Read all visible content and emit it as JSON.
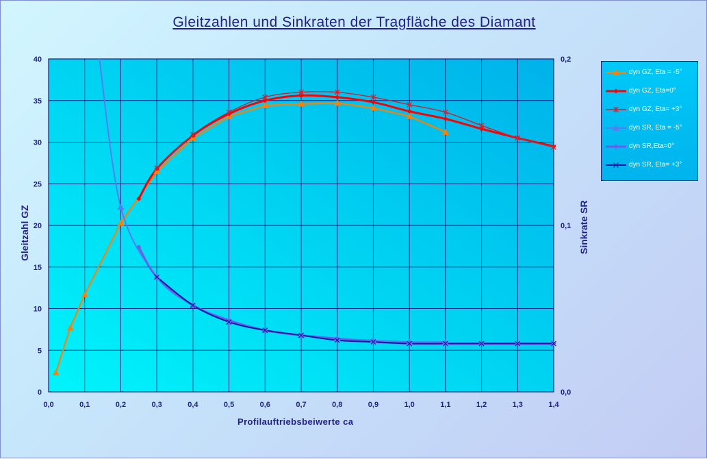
{
  "chart_data": {
    "type": "line",
    "title": "Gleitzahlen und Sinkraten der Tragfläche des Diamant",
    "xlabel": "Profilauftriebsbeiwerte ca",
    "ylabel": "Gleitzahl GZ",
    "y2label": "Sinkrate SR",
    "xlim": [
      0.0,
      1.4
    ],
    "ylim": [
      0,
      40
    ],
    "y2lim": [
      0.0,
      0.2
    ],
    "x_ticks": [
      "0,0",
      "0,1",
      "0,2",
      "0,3",
      "0,4",
      "0,5",
      "0,6",
      "0,7",
      "0,8",
      "0,9",
      "1,0",
      "1,1",
      "1,2",
      "1,3",
      "1,4"
    ],
    "y_ticks": [
      "0",
      "5",
      "10",
      "15",
      "20",
      "25",
      "30",
      "35",
      "40"
    ],
    "y2_ticks": [
      "0,0",
      "0,1",
      "0,2"
    ],
    "grid": true,
    "legend_position": "right",
    "series": [
      {
        "name": "dyn GZ, Eta = -5°",
        "axis": "left",
        "color": "#ff7f00",
        "marker": "triangle",
        "x": [
          0.02,
          0.06,
          0.1,
          0.2,
          0.3,
          0.4,
          0.5,
          0.6,
          0.7,
          0.8,
          0.9,
          1.0,
          1.1
        ],
        "y": [
          2.3,
          7.7,
          11.7,
          20.3,
          26.5,
          30.5,
          33.1,
          34.4,
          34.6,
          34.7,
          34.1,
          33.1,
          31.2
        ]
      },
      {
        "name": "dyn GZ, Eta=0°",
        "axis": "left",
        "color": "#ff0000",
        "marker": "diamond",
        "x": [
          0.25,
          0.3,
          0.4,
          0.5,
          0.6,
          0.7,
          0.8,
          0.9,
          1.0,
          1.1,
          1.2,
          1.3,
          1.4
        ],
        "y": [
          23.2,
          26.8,
          30.8,
          33.4,
          35.0,
          35.6,
          35.4,
          34.8,
          33.7,
          32.8,
          31.6,
          30.5,
          29.5
        ]
      },
      {
        "name": "dyn GZ, Eta= +3°",
        "axis": "left",
        "color": "#cc2233",
        "marker": "star",
        "x": [
          0.3,
          0.4,
          0.5,
          0.6,
          0.7,
          0.8,
          0.9,
          1.0,
          1.1,
          1.2,
          1.3,
          1.4
        ],
        "y": [
          26.9,
          30.9,
          33.6,
          35.4,
          36.0,
          36.0,
          35.4,
          34.5,
          33.6,
          32.0,
          30.5,
          29.4
        ]
      },
      {
        "name": "dyn SR, Eta = -5°",
        "axis": "right",
        "color": "#5a7cf0",
        "marker": "triangle",
        "x": [
          0.14,
          0.2,
          0.3,
          0.4,
          0.5,
          0.6,
          0.7,
          0.8,
          0.9,
          1.0,
          1.1
        ],
        "y": [
          0.201,
          0.111,
          0.069,
          0.052,
          0.042,
          0.037,
          0.034,
          0.032,
          0.031,
          0.03,
          0.03
        ]
      },
      {
        "name": "dyn SR,Eta=0°",
        "axis": "right",
        "color": "#6b5cf0",
        "marker": "diamond",
        "x": [
          0.25,
          0.3,
          0.4,
          0.5,
          0.6,
          0.7,
          0.8,
          0.9,
          1.0,
          1.1,
          1.2,
          1.3,
          1.4
        ],
        "y": [
          0.087,
          0.069,
          0.052,
          0.043,
          0.037,
          0.034,
          0.032,
          0.03,
          0.029,
          0.029,
          0.029,
          0.029,
          0.029
        ]
      },
      {
        "name": "dyn SR, Eta= +3°",
        "axis": "right",
        "color": "#1a1aa8",
        "marker": "x",
        "x": [
          0.3,
          0.4,
          0.5,
          0.6,
          0.7,
          0.8,
          0.9,
          1.0,
          1.1,
          1.2,
          1.3,
          1.4
        ],
        "y": [
          0.069,
          0.052,
          0.042,
          0.037,
          0.034,
          0.031,
          0.03,
          0.029,
          0.029,
          0.029,
          0.029,
          0.029
        ]
      }
    ]
  }
}
